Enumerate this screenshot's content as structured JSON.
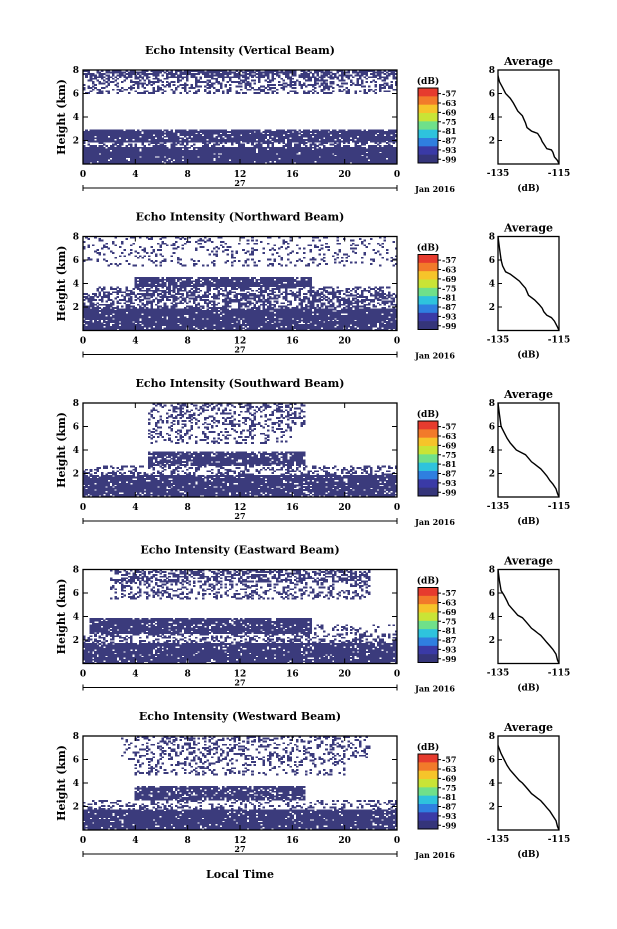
{
  "figure": {
    "xlabel": "Local Time",
    "date_label": "Jan 2016",
    "day_label": "27",
    "colorbar_unit": "(dB)",
    "colorbar_ticks": [
      "-57",
      "-63",
      "-69",
      "-75",
      "-81",
      "-87",
      "-93",
      "-99"
    ],
    "colorbar_colors": [
      "#e63b2e",
      "#f27a2a",
      "#f6c42a",
      "#c9e436",
      "#6fe08a",
      "#2ec3dd",
      "#2f7fe0",
      "#3a3aa6",
      "#35357a"
    ],
    "data_color": "#3b3b7c"
  },
  "chart_data": [
    {
      "type": "heatmap",
      "title": "Echo Intensity (Vertical Beam)",
      "ylabel": "Height (km)",
      "xlim": [
        0,
        24
      ],
      "ylim": [
        0,
        8
      ],
      "xticks": [
        "0",
        "4",
        "8",
        "12",
        "16",
        "20",
        "0"
      ],
      "yticks": [
        "2",
        "4",
        "6",
        "8"
      ],
      "bands": [
        {
          "y": [
            7.3,
            8.0
          ],
          "x": [
            0,
            24
          ],
          "density": 0.7
        },
        {
          "y": [
            6.0,
            7.3
          ],
          "x": [
            0,
            24
          ],
          "density": 0.35
        },
        {
          "y": [
            2.8,
            3.0
          ],
          "x": [
            0,
            24
          ],
          "density": 0.8
        },
        {
          "y": [
            1.9,
            2.8
          ],
          "x": [
            0,
            24
          ],
          "density": 0.93
        },
        {
          "y": [
            1.5,
            1.9
          ],
          "x": [
            0,
            24
          ],
          "density": 0.45
        },
        {
          "y": [
            0.0,
            1.5
          ],
          "x": [
            0,
            24
          ],
          "density": 0.95
        }
      ],
      "profile": {
        "title": "Average",
        "xlabel": "(dB)",
        "xlim": [
          -135,
          -115
        ],
        "xticks": [
          "-135",
          "-115"
        ],
        "ylim": [
          0,
          8
        ],
        "yticks": [
          "2",
          "4",
          "6",
          "8"
        ],
        "x": [
          -135.5,
          -134.5,
          -133.5,
          -132.5,
          -131,
          -130,
          -128.5,
          -127,
          -126.5,
          -126,
          -125.5,
          -124,
          -123,
          -122,
          -121,
          -120.5,
          -120,
          -119,
          -117.5,
          -117,
          -116.5,
          -115.5,
          -115
        ],
        "y": [
          8.0,
          7.0,
          6.5,
          6.0,
          5.6,
          5.2,
          4.5,
          4.1,
          3.8,
          3.5,
          3.1,
          2.8,
          2.7,
          2.6,
          2.2,
          1.9,
          1.7,
          1.3,
          1.2,
          1.0,
          0.6,
          0.3,
          0.0
        ]
      }
    },
    {
      "type": "heatmap",
      "title": "Echo Intensity (Northward Beam)",
      "ylabel": "Height (km)",
      "xlim": [
        0,
        24
      ],
      "ylim": [
        0,
        8
      ],
      "xticks": [
        "0",
        "4",
        "8",
        "12",
        "16",
        "20",
        "0"
      ],
      "yticks": [
        "2",
        "4",
        "6",
        "8"
      ],
      "bands": [
        {
          "y": [
            5.5,
            8.0
          ],
          "x": [
            0,
            24
          ],
          "density": 0.15
        },
        {
          "y": [
            3.7,
            4.6
          ],
          "x": [
            4,
            17.5
          ],
          "density": 0.88
        },
        {
          "y": [
            3.2,
            3.7
          ],
          "x": [
            1,
            23.5
          ],
          "density": 0.5
        },
        {
          "y": [
            1.9,
            3.2
          ],
          "x": [
            0,
            24
          ],
          "density": 0.55
        },
        {
          "y": [
            0.0,
            1.9
          ],
          "x": [
            0,
            24
          ],
          "density": 0.92
        }
      ],
      "profile": {
        "title": "Average",
        "xlabel": "(dB)",
        "xlim": [
          -135,
          -115
        ],
        "xticks": [
          "-135",
          "-115"
        ],
        "ylim": [
          0,
          8
        ],
        "yticks": [
          "2",
          "4",
          "6",
          "8"
        ],
        "x": [
          -135,
          -134.5,
          -134,
          -133.5,
          -132.5,
          -131,
          -129.5,
          -128,
          -127,
          -126,
          -125.5,
          -125,
          -124,
          -123,
          -121.5,
          -120.5,
          -120,
          -119,
          -117.5,
          -116.5,
          -115.5,
          -115
        ],
        "y": [
          8.0,
          7.0,
          6.0,
          5.5,
          5.0,
          4.8,
          4.5,
          4.2,
          3.9,
          3.6,
          3.3,
          3.0,
          2.8,
          2.6,
          2.2,
          1.9,
          1.6,
          1.3,
          1.1,
          0.8,
          0.3,
          0.0
        ]
      }
    },
    {
      "type": "heatmap",
      "title": "Echo Intensity (Southward Beam)",
      "ylabel": "Height (km)",
      "xlim": [
        0,
        24
      ],
      "ylim": [
        0,
        8
      ],
      "xticks": [
        "0",
        "4",
        "8",
        "12",
        "16",
        "20",
        "0"
      ],
      "yticks": [
        "2",
        "4",
        "6",
        "8"
      ],
      "bands": [
        {
          "y": [
            6.0,
            8.0
          ],
          "x": [
            5,
            17
          ],
          "density": 0.3
        },
        {
          "y": [
            4.6,
            6.0
          ],
          "x": [
            5,
            16
          ],
          "density": 0.2
        },
        {
          "y": [
            2.7,
            3.9
          ],
          "x": [
            5,
            17
          ],
          "density": 0.82
        },
        {
          "y": [
            1.9,
            2.7
          ],
          "x": [
            0,
            24
          ],
          "density": 0.35
        },
        {
          "y": [
            0.0,
            1.9
          ],
          "x": [
            0,
            24
          ],
          "density": 0.9
        }
      ],
      "profile": {
        "title": "Average",
        "xlabel": "(dB)",
        "xlim": [
          -135,
          -115
        ],
        "xticks": [
          "-135",
          "-115"
        ],
        "ylim": [
          0,
          8
        ],
        "yticks": [
          "2",
          "4",
          "6",
          "8"
        ],
        "x": [
          -135,
          -134.5,
          -134,
          -133,
          -132,
          -131,
          -130,
          -129,
          -127.5,
          -126,
          -125,
          -124,
          -123,
          -122,
          -121,
          -120,
          -119,
          -118,
          -117,
          -116,
          -115.5,
          -115
        ],
        "y": [
          8.0,
          7.0,
          6.0,
          5.5,
          5.0,
          4.6,
          4.3,
          4.0,
          3.8,
          3.6,
          3.3,
          3.0,
          2.8,
          2.6,
          2.4,
          2.1,
          1.8,
          1.4,
          1.1,
          0.7,
          0.3,
          0.0
        ]
      }
    },
    {
      "type": "heatmap",
      "title": "Echo Intensity (Eastward Beam)",
      "ylabel": "Height (km)",
      "xlim": [
        0,
        24
      ],
      "ylim": [
        0,
        8
      ],
      "xticks": [
        "0",
        "4",
        "8",
        "12",
        "16",
        "20",
        "0"
      ],
      "yticks": [
        "2",
        "4",
        "6",
        "8"
      ],
      "bands": [
        {
          "y": [
            7.0,
            8.0
          ],
          "x": [
            2,
            22
          ],
          "density": 0.55
        },
        {
          "y": [
            5.5,
            7.0
          ],
          "x": [
            2,
            22
          ],
          "density": 0.3
        },
        {
          "y": [
            2.6,
            3.9
          ],
          "x": [
            0.5,
            17.5
          ],
          "density": 0.88
        },
        {
          "y": [
            2.6,
            3.4
          ],
          "x": [
            17.5,
            24
          ],
          "density": 0.2
        },
        {
          "y": [
            1.7,
            2.6
          ],
          "x": [
            0,
            24
          ],
          "density": 0.4
        },
        {
          "y": [
            0.0,
            1.7
          ],
          "x": [
            0,
            24
          ],
          "density": 0.92
        }
      ],
      "profile": {
        "title": "Average",
        "xlabel": "(dB)",
        "xlim": [
          -135,
          -115
        ],
        "xticks": [
          "-135",
          "-115"
        ],
        "ylim": [
          0,
          8
        ],
        "yticks": [
          "2",
          "4",
          "6",
          "8"
        ],
        "x": [
          -135,
          -134.5,
          -134,
          -133,
          -132,
          -131.5,
          -130.5,
          -129.5,
          -128.5,
          -127,
          -126,
          -125,
          -124,
          -123,
          -122,
          -121,
          -120,
          -119,
          -118,
          -117,
          -116,
          -115.5,
          -115
        ],
        "y": [
          8.0,
          7.0,
          6.2,
          5.8,
          5.3,
          5.0,
          4.7,
          4.4,
          4.1,
          3.9,
          3.6,
          3.3,
          3.0,
          2.8,
          2.6,
          2.4,
          2.1,
          1.8,
          1.5,
          1.2,
          0.8,
          0.3,
          0.0
        ]
      }
    },
    {
      "type": "heatmap",
      "title": "Echo Intensity (Westward Beam)",
      "ylabel": "Height (km)",
      "xlim": [
        0,
        24
      ],
      "ylim": [
        0,
        8
      ],
      "xticks": [
        "0",
        "4",
        "8",
        "12",
        "16",
        "20",
        "0"
      ],
      "yticks": [
        "2",
        "4",
        "6",
        "8"
      ],
      "bands": [
        {
          "y": [
            6.0,
            8.0
          ],
          "x": [
            3,
            22
          ],
          "density": 0.3
        },
        {
          "y": [
            4.7,
            6.0
          ],
          "x": [
            4,
            20
          ],
          "density": 0.2
        },
        {
          "y": [
            2.6,
            3.8
          ],
          "x": [
            4,
            17
          ],
          "density": 0.82
        },
        {
          "y": [
            1.8,
            2.6
          ],
          "x": [
            0,
            24
          ],
          "density": 0.3
        },
        {
          "y": [
            0.0,
            1.8
          ],
          "x": [
            0,
            24
          ],
          "density": 0.92
        }
      ],
      "profile": {
        "title": "Average",
        "xlabel": "(dB)",
        "xlim": [
          -135,
          -115
        ],
        "xticks": [
          "-135",
          "-115"
        ],
        "ylim": [
          0,
          8
        ],
        "yticks": [
          "2",
          "4",
          "6",
          "8"
        ],
        "x": [
          -136,
          -135,
          -134,
          -133,
          -132,
          -131,
          -130,
          -129,
          -128,
          -127,
          -126,
          -125,
          -124,
          -123,
          -122,
          -121,
          -120,
          -119,
          -118,
          -117,
          -116,
          -115.5,
          -115
        ],
        "y": [
          8.0,
          7.2,
          6.5,
          6.0,
          5.5,
          5.1,
          4.8,
          4.5,
          4.2,
          4.0,
          3.7,
          3.4,
          3.1,
          2.9,
          2.7,
          2.5,
          2.2,
          1.9,
          1.6,
          1.2,
          0.8,
          0.3,
          0.0
        ]
      }
    }
  ]
}
